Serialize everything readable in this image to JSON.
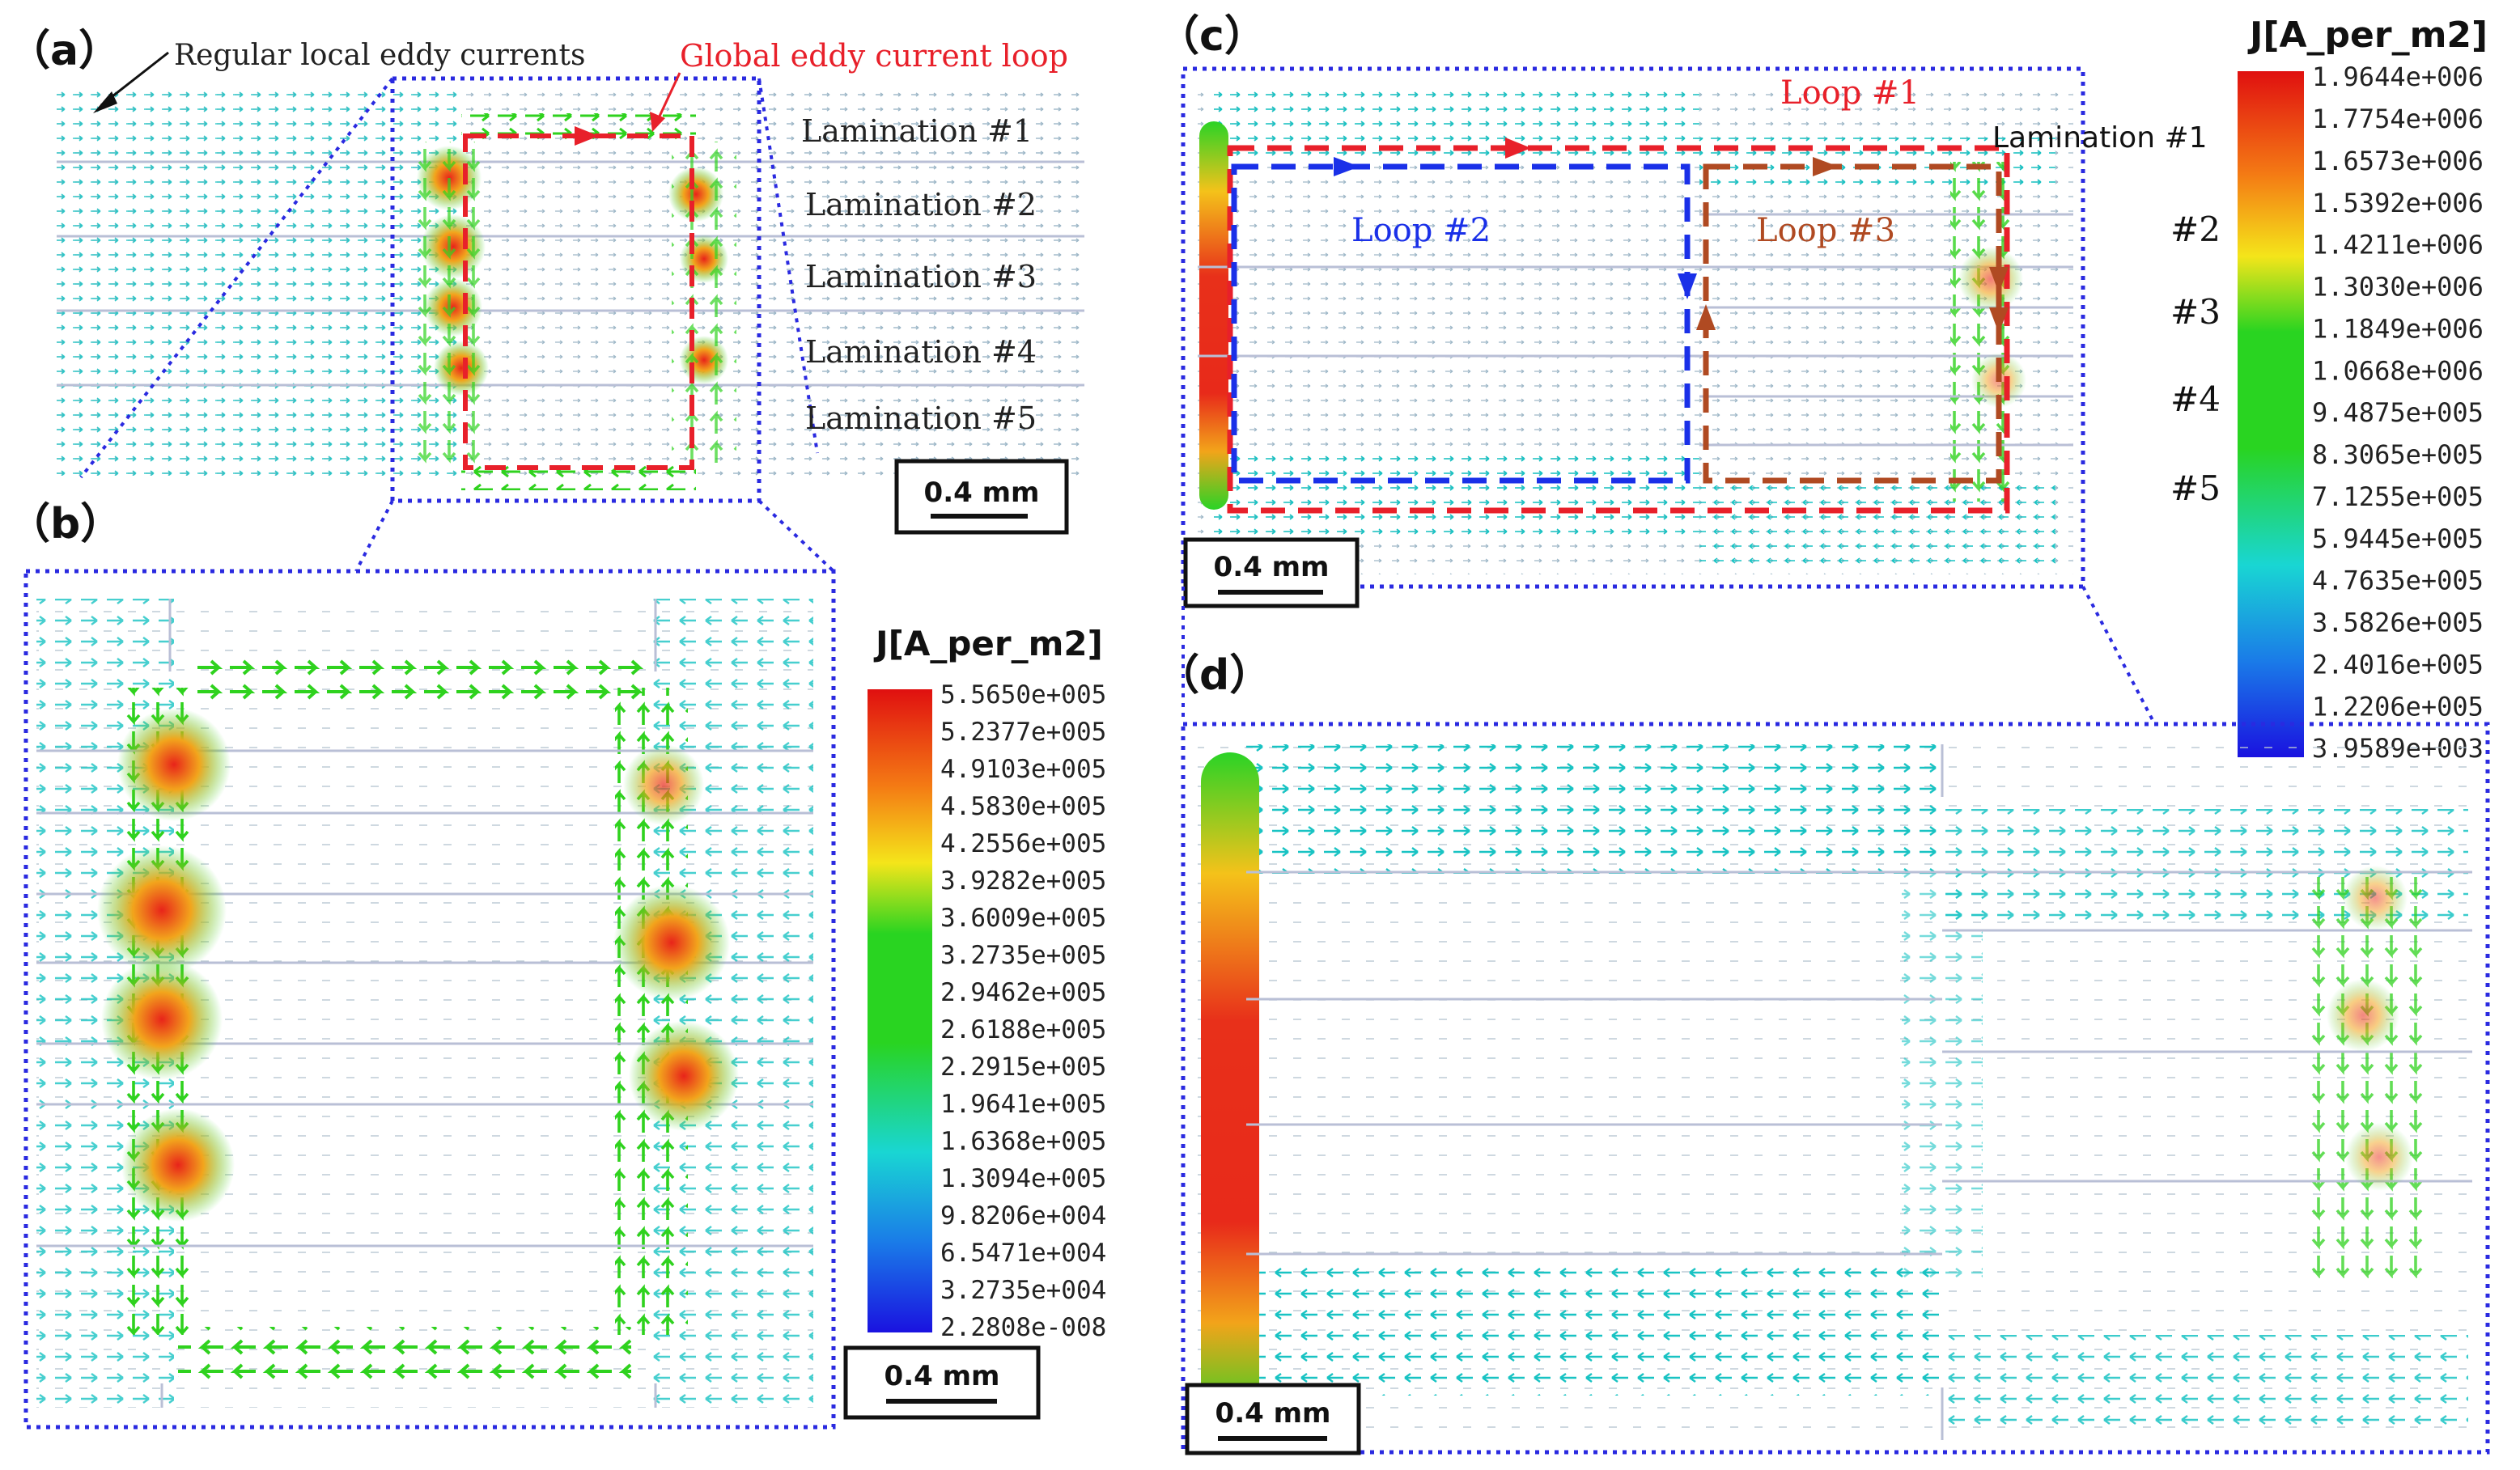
{
  "panels": {
    "a": {
      "label": "（a）",
      "annot_regular": "Regular local eddy currents",
      "annot_global": "Global eddy current loop",
      "laminations": [
        "Lamination #1",
        "Lamination #2",
        "Lamination #3",
        "Lamination #4",
        "Lamination #5"
      ],
      "scale": "0.4 mm"
    },
    "b": {
      "label": "（b）",
      "scale": "0.4 mm"
    },
    "c": {
      "label": "（c）",
      "loops": [
        "Loop #1",
        "Loop #2",
        "Loop #3"
      ],
      "laminations": [
        "Lamination #1",
        "#2",
        "#3",
        "#4",
        "#5"
      ],
      "scale": "0.4 mm"
    },
    "d": {
      "label": "（d）",
      "scale": "0.4 mm"
    }
  },
  "legend_b": {
    "title": "J[A_per_m2]",
    "values": [
      "5.5650e+005",
      "5.2377e+005",
      "4.9103e+005",
      "4.5830e+005",
      "4.2556e+005",
      "3.9282e+005",
      "3.6009e+005",
      "3.2735e+005",
      "2.9462e+005",
      "2.6188e+005",
      "2.2915e+005",
      "1.9641e+005",
      "1.6368e+005",
      "1.3094e+005",
      "9.8206e+004",
      "6.5471e+004",
      "3.2735e+004",
      "2.2808e-008"
    ]
  },
  "legend_c": {
    "title": "J[A_per_m2]",
    "values": [
      "1.9644e+006",
      "1.7754e+006",
      "1.6573e+006",
      "1.5392e+006",
      "1.4211e+006",
      "1.3030e+006",
      "1.1849e+006",
      "1.0668e+006",
      "9.4875e+005",
      "8.3065e+005",
      "7.1255e+005",
      "5.9445e+005",
      "4.7635e+005",
      "3.5826e+005",
      "2.4016e+005",
      "1.2206e+005",
      "3.9589e+003"
    ]
  },
  "colors": {
    "dotted_frame": "#2a2ae0",
    "loop_red": "#e8202a",
    "loop_blue": "#1a30e8",
    "loop_brown": "#b04a22",
    "arrow_cyan": "#19c3c3",
    "arrow_green": "#2fd21e",
    "arrow_red": "#e8241a"
  }
}
